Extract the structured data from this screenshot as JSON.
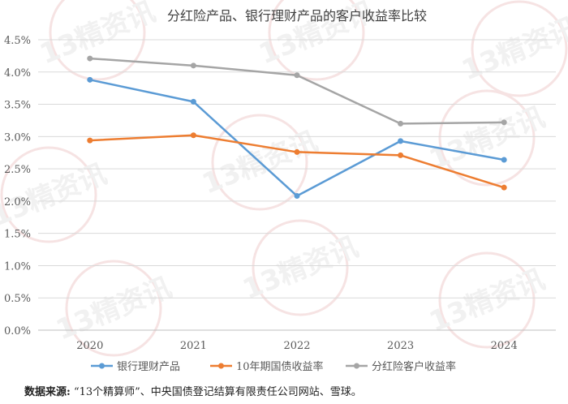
{
  "chart_data": {
    "type": "line",
    "title": "分红险产品、银行理财产品的客户收益率比较",
    "categories": [
      "2020",
      "2021",
      "2022",
      "2023",
      "2024"
    ],
    "ylim": [
      0,
      4.5
    ],
    "yticks": [
      "0.0%",
      "0.5%",
      "1.0%",
      "1.5%",
      "2.0%",
      "2.5%",
      "3.0%",
      "3.5%",
      "4.0%",
      "4.5%"
    ],
    "grid": true,
    "legend_position": "bottom",
    "series": [
      {
        "name": "银行理财产品",
        "color": "#5B9BD5",
        "values": [
          3.88,
          3.54,
          2.08,
          2.93,
          2.64
        ]
      },
      {
        "name": "10年期国债收益率",
        "color": "#ED7D31",
        "values": [
          2.94,
          3.02,
          2.76,
          2.71,
          2.21
        ]
      },
      {
        "name": "分红险客户收益率",
        "color": "#A5A5A5",
        "values": [
          4.21,
          4.1,
          3.95,
          3.2,
          3.22
        ]
      }
    ]
  },
  "watermark_text": "13精资讯",
  "source": {
    "label": "数据来源:",
    "text": "“13个精算师”、中央国债登记结算有限责任公司网站、雪球。"
  }
}
